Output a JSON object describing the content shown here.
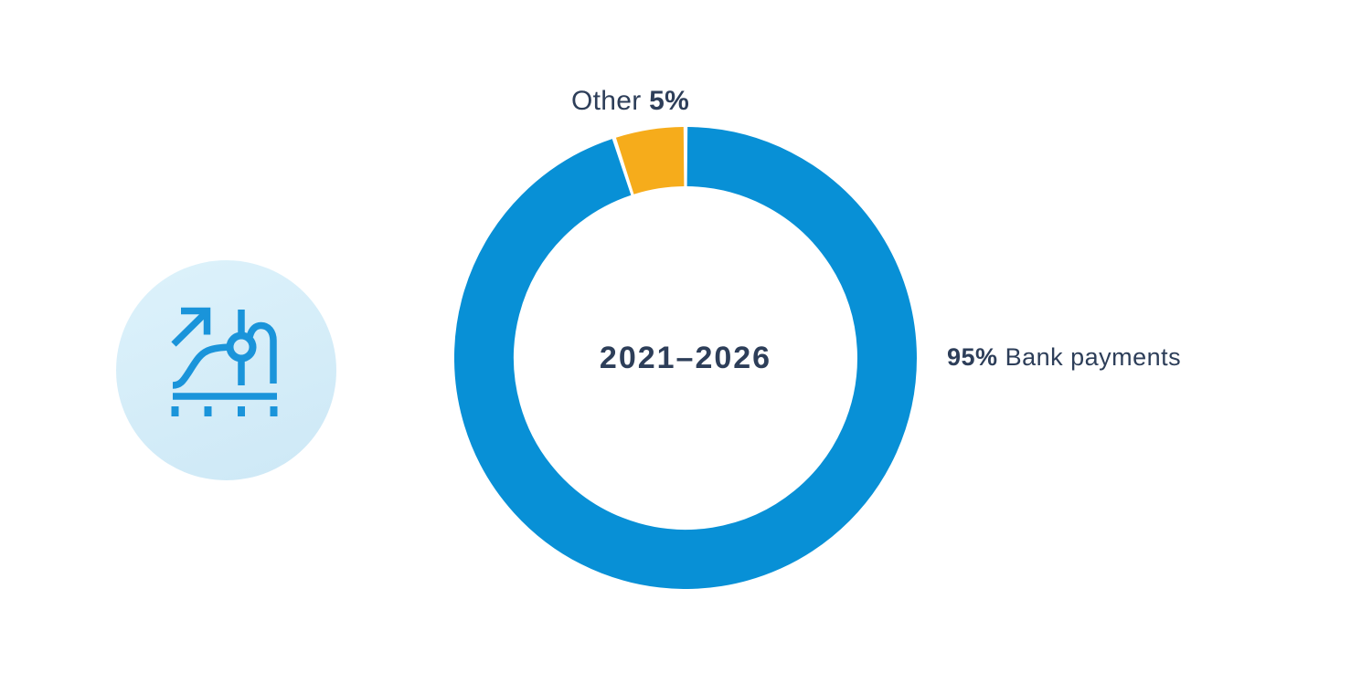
{
  "chart_data": {
    "type": "pie",
    "subtype": "donut",
    "center_label": "2021–2026",
    "series": [
      {
        "name": "Bank payments",
        "value": 95,
        "color": "#0890d6"
      },
      {
        "name": "Other",
        "value": 5,
        "color": "#f6ac1b"
      }
    ],
    "start_angle_deg": 0,
    "direction": "clockwise",
    "outer_radius": 253,
    "ring_thickness": 65,
    "slice_gap_deg": 1,
    "legend_position": "callouts",
    "annotations": [
      {
        "text": "Other",
        "value": "5%",
        "position": "top-left-of-donut"
      },
      {
        "value": "95%",
        "text": "Bank payments",
        "position": "right-of-donut"
      }
    ]
  },
  "labels": {
    "center": "2021–2026",
    "other": {
      "text": "Other",
      "value": "5%"
    },
    "bank": {
      "value": "95%",
      "text": "Bank payments"
    }
  },
  "icon": {
    "name": "growth-chart-icon",
    "stroke_color": "#1a94da",
    "bg_gradient_from": "#ddf2fb",
    "bg_gradient_to": "#cde8f6"
  },
  "colors": {
    "text_navy": "#2d3e59",
    "donut_blue": "#0890d6",
    "donut_orange": "#f6ac1b",
    "background": "#ffffff"
  }
}
